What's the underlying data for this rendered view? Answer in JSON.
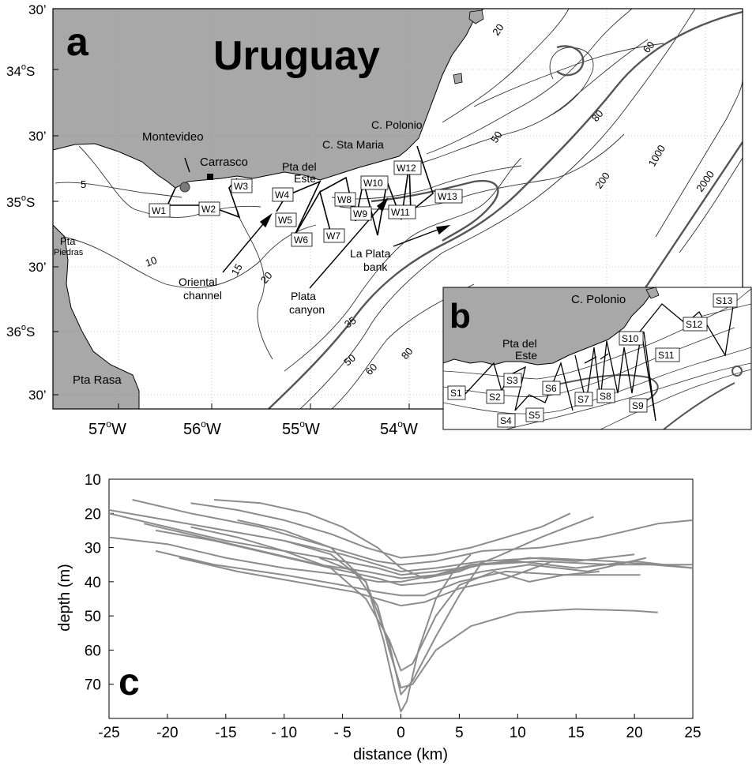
{
  "panel_a": {
    "letter": "a",
    "country": "Uruguay",
    "lat_labels": [
      "30’",
      "34",
      "30’",
      "35",
      "30’",
      "36",
      "30’"
    ],
    "lat_hemisphere": "S",
    "lon_labels": [
      "57",
      "56",
      "55",
      "54"
    ],
    "lon_hemisphere": "W",
    "degree_sign": "o",
    "places": {
      "montevideo": "Montevideo",
      "carrasco": "Carrasco",
      "pta_del": "Pta del",
      "este": "Este",
      "c_polonio": "C. Polonio",
      "c_sta_maria": "C. Sta Maria",
      "pta": "Pta",
      "piedras": "Piedras",
      "pta_rasa": "Pta Rasa",
      "oriental": "Oriental",
      "channel": "channel",
      "plata": "Plata",
      "canyon": "canyon",
      "la_plata": "La Plata",
      "bank": "bank"
    },
    "depth_labels": [
      "5",
      "10",
      "15",
      "20",
      "20",
      "35",
      "50",
      "60",
      "80",
      "50",
      "80",
      "60",
      "200",
      "1000",
      "2000"
    ],
    "stations": [
      "W1",
      "W2",
      "W3",
      "W4",
      "W5",
      "W6",
      "W7",
      "W8",
      "W9",
      "W10",
      "W11",
      "W12",
      "W13"
    ]
  },
  "panel_b": {
    "letter": "b",
    "c_polonio": "C. Polonio",
    "pta_del": "Pta del",
    "este": "Este",
    "stations": [
      "S1",
      "S2",
      "S3",
      "S4",
      "S5",
      "S6",
      "S7",
      "S8",
      "S9",
      "S10",
      "S11",
      "S12",
      "S13"
    ]
  },
  "panel_c": {
    "letter": "c",
    "chart_data": {
      "type": "line",
      "xlabel": "distance (km)",
      "ylabel": "depth (m)",
      "xlim": [
        -25,
        25
      ],
      "ylim": [
        10,
        80
      ],
      "y_inverted": true,
      "x_ticks": [
        "-25",
        "-20",
        "-15",
        "- 10",
        "- 5",
        "0",
        "5",
        "10",
        "15",
        "20",
        "25"
      ],
      "y_ticks": [
        "10",
        "20",
        "30",
        "40",
        "50",
        "60",
        "70"
      ],
      "line_color": "#8c8c8c",
      "series": [
        {
          "x": [
            -23,
            -18,
            -12,
            -6,
            -2,
            0,
            3,
            7,
            12,
            17,
            22,
            25
          ],
          "y": [
            16,
            20,
            24,
            30,
            34,
            35,
            34,
            31,
            30,
            27,
            23,
            22
          ]
        },
        {
          "x": [
            -18,
            -14,
            -10,
            -6,
            -3,
            0,
            3,
            6,
            9,
            12,
            14.5
          ],
          "y": [
            17,
            19,
            22,
            26,
            30,
            33,
            32,
            30,
            27,
            24,
            20
          ]
        },
        {
          "x": [
            -16,
            -12,
            -8,
            -5,
            -2,
            0,
            2,
            5,
            8,
            12,
            16.5
          ],
          "y": [
            16,
            17,
            20,
            24,
            30,
            36,
            39,
            37,
            33,
            27,
            21
          ]
        },
        {
          "x": [
            -25,
            -20,
            -15,
            -10,
            -5,
            -2,
            0,
            3,
            7,
            12,
            18,
            25
          ],
          "y": [
            19,
            22,
            25,
            28,
            32,
            35,
            37,
            36,
            34,
            33,
            34,
            36
          ]
        },
        {
          "x": [
            -25,
            -20,
            -15,
            -10,
            -5,
            -2,
            0,
            3,
            7,
            12,
            18,
            25
          ],
          "y": [
            20,
            24,
            28,
            31,
            34,
            36,
            38,
            37,
            35,
            34,
            35,
            35
          ]
        },
        {
          "x": [
            -22,
            -17,
            -12,
            -7,
            -3,
            0,
            3,
            7,
            11,
            15,
            20
          ],
          "y": [
            23,
            27,
            31,
            35,
            37,
            39,
            38,
            35,
            33,
            34,
            32
          ]
        },
        {
          "x": [
            -21,
            -16,
            -11,
            -6,
            -2,
            0,
            3,
            7,
            11,
            16,
            21
          ],
          "y": [
            25,
            28,
            32,
            36,
            39,
            41,
            40,
            37,
            35,
            37,
            33
          ]
        },
        {
          "x": [
            -25,
            -20,
            -15,
            -10,
            -5,
            -2,
            0,
            3,
            6,
            10,
            15,
            20,
            25
          ],
          "y": [
            27,
            29,
            33,
            36,
            38,
            40,
            40,
            38,
            35,
            34,
            36,
            34,
            36
          ]
        },
        {
          "x": [
            -21,
            -16,
            -10,
            -5,
            -2,
            0,
            2,
            5,
            9,
            14,
            20.5
          ],
          "y": [
            31,
            35,
            38,
            41,
            43,
            44,
            44,
            40,
            37,
            38,
            38
          ]
        },
        {
          "x": [
            -19,
            -14,
            -9,
            -4,
            -1,
            0,
            2,
            5,
            9,
            13
          ],
          "y": [
            33,
            37,
            40,
            43,
            46,
            47,
            46,
            42,
            39,
            34
          ]
        },
        {
          "x": [
            -18,
            -14,
            -10,
            -6,
            -3,
            -1,
            0,
            1,
            3,
            5,
            8,
            11,
            14,
            17
          ],
          "y": [
            24,
            27,
            31,
            36,
            45,
            57,
            66,
            64,
            50,
            41,
            37,
            40,
            38,
            37
          ]
        },
        {
          "x": [
            -14,
            -10,
            -6,
            -3,
            -1,
            0,
            1,
            3,
            5,
            7
          ],
          "y": [
            22,
            25,
            30,
            40,
            58,
            73,
            69,
            56,
            44,
            34
          ]
        },
        {
          "x": [
            -7,
            -4,
            -2,
            -1,
            0,
            1,
            3,
            6,
            10,
            15,
            20,
            22
          ],
          "y": [
            33,
            37,
            47,
            60,
            71,
            70,
            60,
            53,
            49,
            48,
            48.5,
            49
          ]
        },
        {
          "x": [
            -10,
            -6,
            -3,
            -1.5,
            -0.5,
            0,
            0.5,
            1.5,
            3,
            4.5,
            6
          ],
          "y": [
            28,
            32,
            40,
            57,
            72,
            78,
            75,
            60,
            45,
            37,
            32
          ]
        }
      ]
    }
  }
}
